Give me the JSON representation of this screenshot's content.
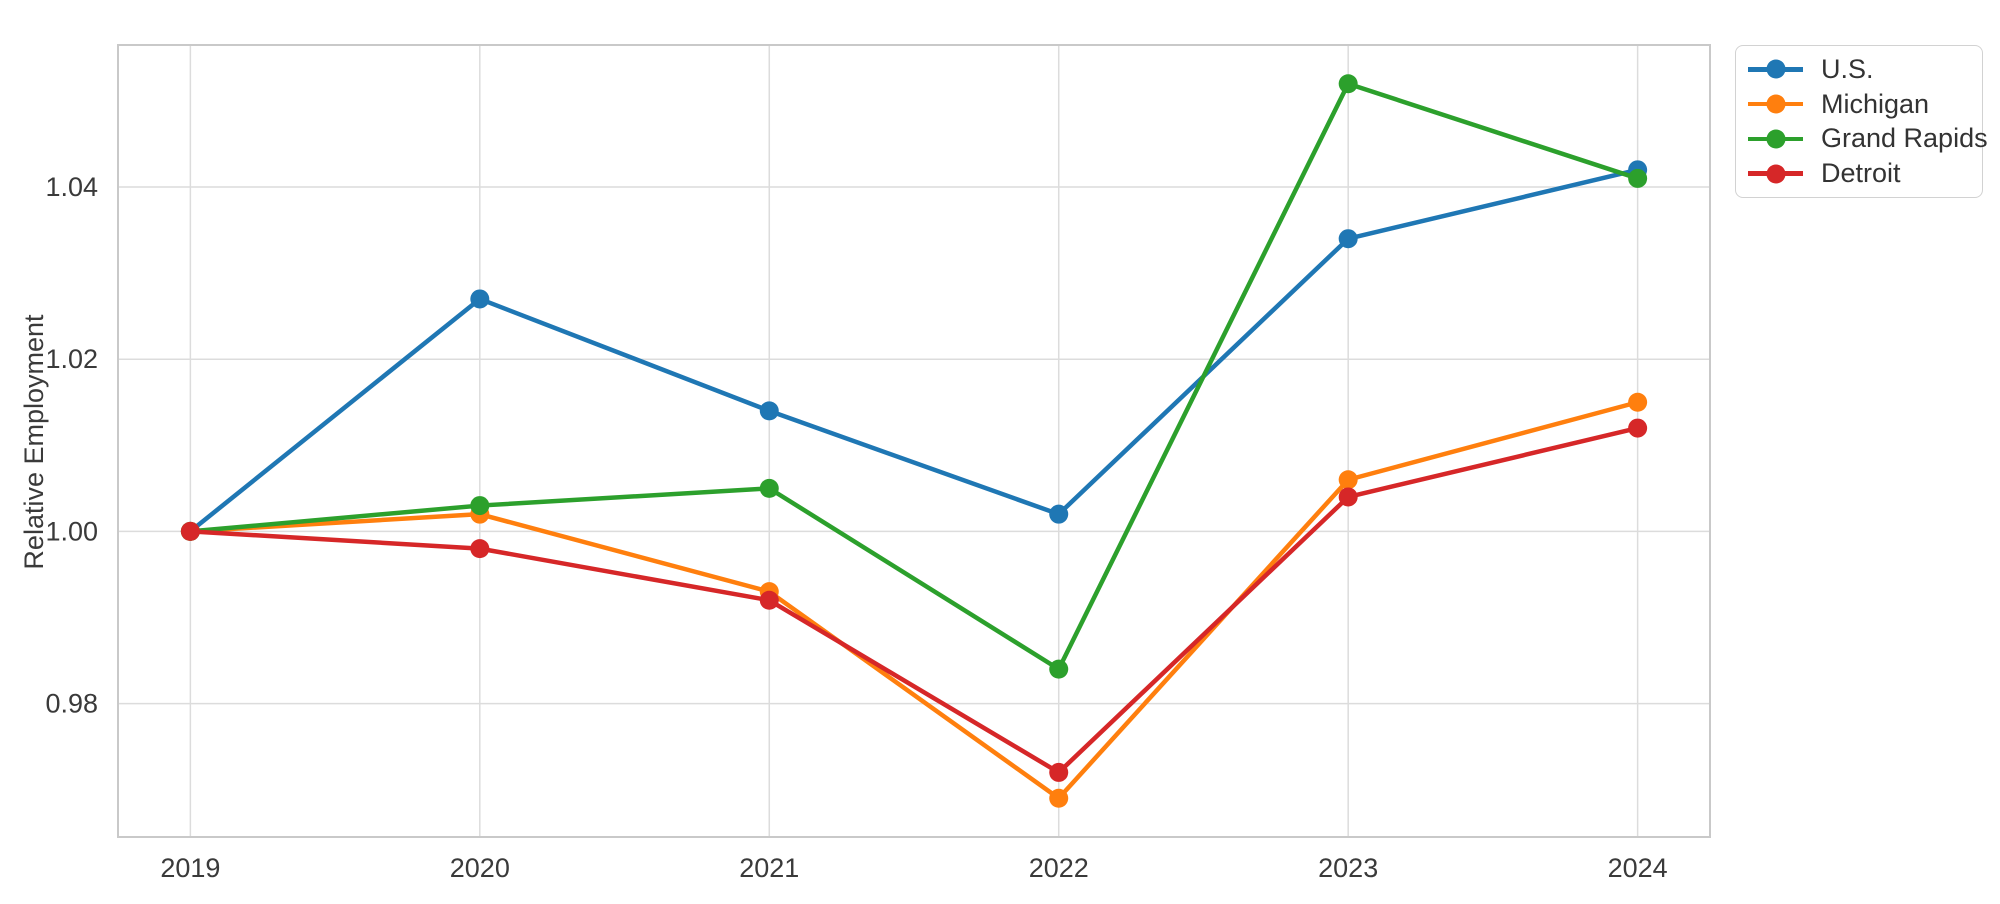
{
  "figure": {
    "background": "#ffffff"
  },
  "chart_data": {
    "type": "line",
    "title": "",
    "xlabel": "",
    "ylabel": "Relative Employment",
    "x": [
      2019,
      2020,
      2021,
      2022,
      2023,
      2024
    ],
    "x_tick_labels": [
      "2019",
      "2020",
      "2021",
      "2022",
      "2023",
      "2024"
    ],
    "y_ticks": [
      0.98,
      1.0,
      1.02,
      1.04
    ],
    "y_tick_labels": [
      "0.98",
      "1.00",
      "1.02",
      "1.04"
    ],
    "xlim": [
      2018.75,
      2024.25
    ],
    "ylim": [
      0.9645,
      1.0565
    ],
    "grid": true,
    "legend_position": "outside-top-right",
    "series": [
      {
        "name": "U.S.",
        "color": "#1f77b4",
        "values": [
          1.0,
          1.027,
          1.014,
          1.002,
          1.034,
          1.042
        ]
      },
      {
        "name": "Michigan",
        "color": "#ff7f0e",
        "values": [
          1.0,
          1.002,
          0.993,
          0.969,
          1.006,
          1.015
        ]
      },
      {
        "name": "Grand Rapids",
        "color": "#2ca02c",
        "values": [
          1.0,
          1.003,
          1.005,
          0.984,
          1.052,
          1.041
        ]
      },
      {
        "name": "Detroit",
        "color": "#d62728",
        "values": [
          1.0,
          0.998,
          0.992,
          0.972,
          1.004,
          1.012
        ]
      }
    ],
    "style": {
      "grid_color": "#dcdcdc",
      "spine_color": "#c9c9c9",
      "tick_text_color": "#3a3a3a",
      "line_width": 4.5,
      "marker_radius": 9.5
    }
  }
}
